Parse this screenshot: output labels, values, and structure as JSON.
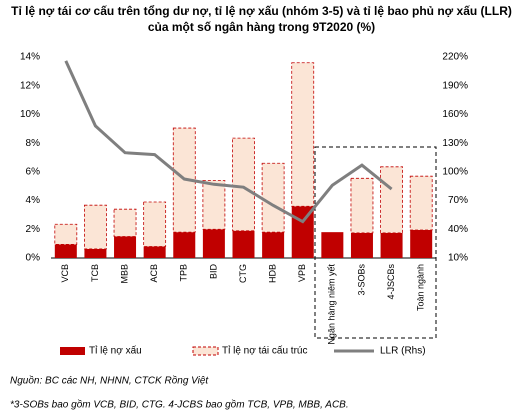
{
  "chart_data": {
    "type": "bar",
    "stacked": true,
    "title": "Tỉ lệ nợ tái cơ cấu trên tổng dư nợ, tỉ lệ nợ xấu (nhóm 3-5) và tỉ lệ bao phủ nợ xấu (LLR) của một số ngân hàng trong 9T2020 (%)",
    "categories": [
      "VCB",
      "TCB",
      "MBB",
      "ACB",
      "TPB",
      "BID",
      "CTG",
      "HDB",
      "VPB",
      "Ngân hàng niêm yết",
      "3-SOBs",
      "4-JSCBs",
      "Toàn ngành"
    ],
    "series": [
      {
        "name": "Tỉ lệ nợ xấu",
        "type": "bar",
        "color": "#c00000",
        "values": [
          0.95,
          0.63,
          1.5,
          0.8,
          1.8,
          2.0,
          1.9,
          1.8,
          3.6,
          1.8,
          1.75,
          1.75,
          1.95
        ]
      },
      {
        "name": "Tỉ lệ nợ tái cấu trúc",
        "type": "bar",
        "color": "#fbe5d6",
        "border": "#c00000",
        "values": [
          1.4,
          3.05,
          1.9,
          3.1,
          7.25,
          3.4,
          6.45,
          4.8,
          10.0,
          null,
          3.8,
          4.6,
          3.75
        ]
      },
      {
        "name": "LLR (Rhs)",
        "type": "line",
        "axis": "y2",
        "color": "#7f7f7f",
        "values": [
          216,
          148,
          120,
          118,
          92.5,
          87,
          84,
          65,
          48,
          86,
          107,
          82,
          null
        ]
      }
    ],
    "ylim": [
      0,
      14
    ],
    "yticks": [
      {
        "value": 0,
        "label": "0%"
      },
      {
        "value": 2,
        "label": "2%"
      },
      {
        "value": 4,
        "label": "4%"
      },
      {
        "value": 6,
        "label": "6%"
      },
      {
        "value": 8,
        "label": "8%"
      },
      {
        "value": 10,
        "label": "10%"
      },
      {
        "value": 12,
        "label": "12%"
      },
      {
        "value": 14,
        "label": "14%"
      }
    ],
    "y2lim": [
      10,
      220
    ],
    "y2ticks": [
      {
        "value": 10,
        "label": "10%"
      },
      {
        "value": 40,
        "label": "40%"
      },
      {
        "value": 70,
        "label": "70%"
      },
      {
        "value": 100,
        "label": "100%"
      },
      {
        "value": 130,
        "label": "130%"
      },
      {
        "value": 160,
        "label": "160%"
      },
      {
        "value": 190,
        "label": "190%"
      },
      {
        "value": 220,
        "label": "220%"
      }
    ],
    "grid": false,
    "source": "Nguồn: BC các NH, NHNN, CTCK Rồng Việt",
    "note": "*3-SOBs bao gồm VCB, BID, CTG. 4-JCBS bao gồm TCB, VPB, MBB, ACB."
  }
}
